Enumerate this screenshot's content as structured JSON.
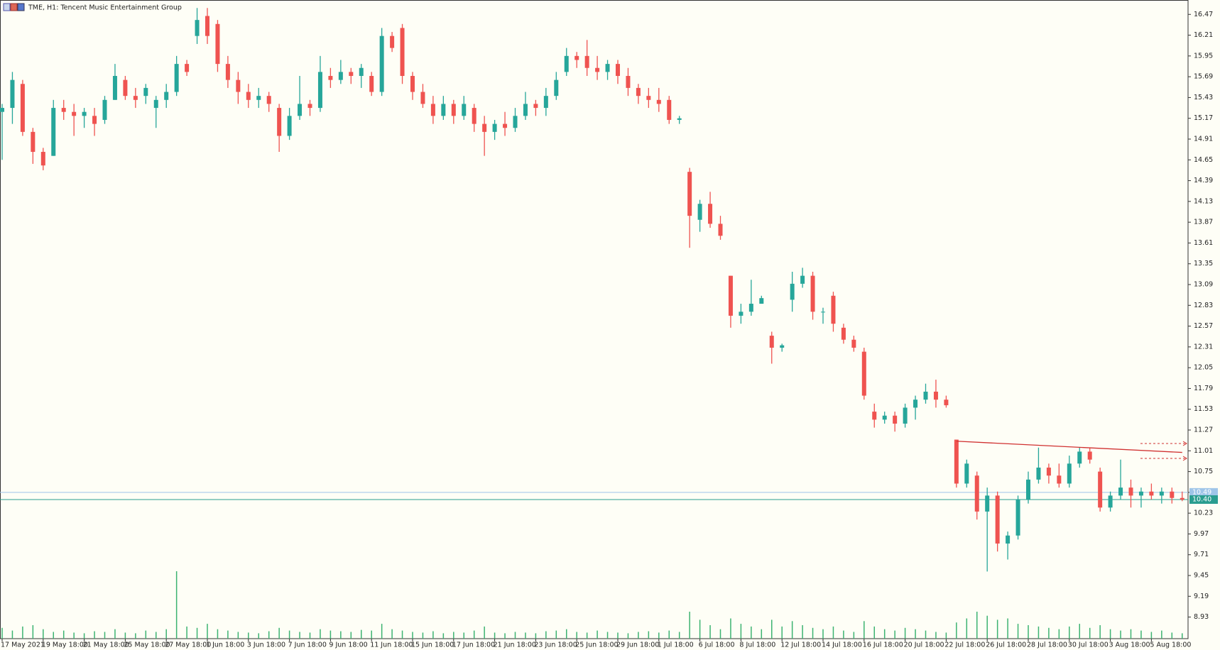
{
  "chart_data": {
    "type": "candlestick",
    "title": "TME, H1:  Tencent Music Entertainment Group",
    "categories": [
      "17 May 2021",
      null,
      null,
      null,
      "19 May 18:00",
      null,
      null,
      null,
      "21 May 18:00",
      null,
      null,
      null,
      "25 May 18:00",
      null,
      null,
      null,
      "27 May 18:00",
      null,
      null,
      null,
      "1 Jun 18:00",
      null,
      null,
      null,
      "3 Jun 18:00",
      null,
      null,
      null,
      "7 Jun 18:00",
      null,
      null,
      null,
      "9 Jun 18:00",
      null,
      null,
      null,
      "11 Jun 18:00",
      null,
      null,
      null,
      "15 Jun 18:00",
      null,
      null,
      null,
      "17 Jun 18:00",
      null,
      null,
      null,
      "21 Jun 18:00",
      null,
      null,
      null,
      "23 Jun 18:00",
      null,
      null,
      null,
      "25 Jun 18:00",
      null,
      null,
      null,
      "29 Jun 18:00",
      null,
      null,
      null,
      "1 Jul 18:00",
      null,
      null,
      null,
      "6 Jul 18:00",
      null,
      null,
      null,
      "8 Jul 18:00",
      null,
      null,
      null,
      "12 Jul 18:00",
      null,
      null,
      null,
      "14 Jul 18:00",
      null,
      null,
      null,
      "16 Jul 18:00",
      null,
      null,
      null,
      "20 Jul 18:00",
      null,
      null,
      null,
      "22 Jul 18:00",
      null,
      null,
      null,
      "26 Jul 18:00",
      null,
      null,
      null,
      "28 Jul 18:00",
      null,
      null,
      null,
      "30 Jul 18:00",
      null,
      null,
      null,
      "3 Aug 18:00",
      null,
      null,
      null,
      "5 Aug 18:00",
      null,
      null,
      null
    ],
    "open": [
      15.25,
      15.3,
      15.6,
      15.0,
      14.75,
      14.7,
      15.3,
      15.25,
      15.2,
      15.2,
      15.15,
      15.4,
      15.65,
      15.45,
      15.45,
      15.3,
      15.4,
      15.5,
      15.85,
      16.2,
      16.45,
      16.35,
      15.85,
      15.65,
      15.5,
      15.4,
      15.45,
      15.3,
      14.95,
      15.2,
      15.35,
      15.3,
      15.7,
      15.65,
      15.75,
      15.7,
      15.7,
      15.5,
      16.2,
      16.3,
      15.7,
      15.5,
      15.35,
      15.2,
      15.35,
      15.2,
      15.3,
      15.1,
      15.0,
      15.1,
      15.05,
      15.2,
      15.35,
      15.3,
      15.45,
      15.75,
      15.95,
      15.95,
      15.8,
      15.75,
      15.85,
      15.7,
      15.55,
      15.45,
      15.4,
      15.4,
      15.15,
      14.5,
      13.9,
      14.1,
      13.85,
      13.2,
      12.7,
      12.75,
      12.85,
      12.45,
      12.3,
      12.9,
      13.1,
      13.2,
      12.75,
      12.95,
      12.55,
      12.4,
      12.25,
      11.5,
      11.4,
      11.45,
      11.35,
      11.55,
      11.65,
      11.75,
      11.65,
      11.15,
      10.6,
      10.7,
      10.25,
      10.45,
      9.85,
      9.95,
      10.4,
      10.65,
      10.8,
      10.7,
      10.6,
      10.85,
      11.0,
      10.75,
      10.3,
      10.45,
      10.55,
      10.45,
      10.5,
      10.45,
      10.5,
      10.42
    ],
    "high": [
      15.35,
      15.75,
      15.65,
      15.05,
      14.8,
      15.4,
      15.4,
      15.35,
      15.3,
      15.3,
      15.45,
      15.85,
      15.7,
      15.55,
      15.6,
      15.45,
      15.6,
      15.95,
      15.9,
      16.55,
      16.55,
      16.4,
      15.95,
      15.75,
      15.6,
      15.55,
      15.5,
      15.35,
      15.3,
      15.7,
      15.4,
      15.95,
      15.8,
      15.9,
      15.8,
      15.85,
      15.75,
      16.3,
      16.25,
      16.35,
      15.75,
      15.6,
      15.45,
      15.45,
      15.4,
      15.45,
      15.35,
      15.2,
      15.15,
      15.25,
      15.3,
      15.5,
      15.4,
      15.55,
      15.75,
      16.05,
      16.0,
      16.15,
      15.95,
      15.9,
      15.9,
      15.8,
      15.6,
      15.55,
      15.55,
      15.45,
      15.2,
      14.55,
      14.15,
      14.25,
      13.95,
      13.2,
      12.85,
      13.15,
      12.95,
      12.5,
      12.35,
      13.25,
      13.3,
      13.25,
      12.8,
      13.0,
      12.6,
      12.45,
      12.3,
      11.6,
      11.5,
      11.5,
      11.6,
      11.7,
      11.85,
      11.9,
      11.7,
      11.15,
      10.9,
      10.75,
      10.55,
      10.5,
      10.0,
      10.45,
      10.75,
      11.05,
      10.85,
      10.85,
      10.95,
      11.05,
      11.05,
      10.8,
      10.5,
      10.9,
      10.65,
      10.55,
      10.6,
      10.55,
      10.55,
      10.5
    ],
    "low": [
      14.65,
      15.1,
      14.95,
      14.6,
      14.52,
      14.7,
      15.15,
      14.95,
      15.05,
      14.95,
      15.1,
      15.4,
      15.4,
      15.3,
      15.35,
      15.05,
      15.3,
      15.45,
      15.7,
      16.1,
      16.1,
      15.75,
      15.55,
      15.35,
      15.3,
      15.3,
      15.25,
      14.75,
      14.9,
      15.15,
      15.2,
      15.25,
      15.55,
      15.6,
      15.6,
      15.55,
      15.45,
      15.45,
      16.0,
      15.6,
      15.4,
      15.3,
      15.1,
      15.15,
      15.1,
      15.15,
      15.0,
      14.7,
      14.9,
      14.95,
      15.0,
      15.15,
      15.2,
      15.2,
      15.4,
      15.7,
      15.8,
      15.7,
      15.65,
      15.65,
      15.6,
      15.45,
      15.35,
      15.3,
      15.25,
      15.1,
      15.1,
      13.55,
      13.75,
      13.8,
      13.65,
      12.55,
      12.6,
      12.7,
      12.85,
      12.1,
      12.25,
      12.75,
      13.05,
      12.65,
      12.6,
      12.5,
      12.35,
      12.25,
      11.65,
      11.3,
      11.35,
      11.25,
      11.3,
      11.4,
      11.6,
      11.55,
      11.55,
      10.55,
      10.55,
      10.15,
      9.5,
      9.75,
      9.65,
      9.9,
      10.35,
      10.6,
      10.6,
      10.55,
      10.55,
      10.8,
      10.85,
      10.25,
      10.25,
      10.4,
      10.3,
      10.3,
      10.4,
      10.35,
      10.35,
      10.38
    ],
    "close": [
      15.3,
      15.65,
      15.0,
      14.75,
      14.58,
      15.3,
      15.25,
      15.2,
      15.25,
      15.1,
      15.4,
      15.7,
      15.45,
      15.4,
      15.55,
      15.4,
      15.5,
      15.85,
      15.75,
      16.4,
      16.2,
      15.85,
      15.65,
      15.5,
      15.4,
      15.45,
      15.35,
      14.95,
      15.2,
      15.35,
      15.3,
      15.75,
      15.65,
      15.75,
      15.7,
      15.8,
      15.5,
      16.2,
      16.05,
      15.7,
      15.5,
      15.35,
      15.2,
      15.35,
      15.2,
      15.35,
      15.1,
      15.0,
      15.1,
      15.05,
      15.2,
      15.35,
      15.3,
      15.45,
      15.65,
      15.95,
      15.9,
      15.8,
      15.75,
      15.85,
      15.7,
      15.55,
      15.45,
      15.4,
      15.35,
      15.15,
      15.17,
      13.95,
      14.1,
      13.85,
      13.7,
      12.7,
      12.75,
      12.85,
      12.92,
      12.3,
      12.33,
      13.1,
      13.2,
      12.75,
      12.75,
      12.6,
      12.4,
      12.3,
      11.7,
      11.4,
      11.45,
      11.35,
      11.55,
      11.65,
      11.75,
      11.65,
      11.58,
      10.6,
      10.85,
      10.25,
      10.45,
      9.85,
      9.95,
      10.4,
      10.65,
      10.8,
      10.7,
      10.6,
      10.85,
      11.0,
      10.9,
      10.3,
      10.45,
      10.55,
      10.45,
      10.5,
      10.45,
      10.5,
      10.42,
      10.4
    ],
    "volume": [
      16,
      12,
      18,
      20,
      14,
      10,
      12,
      9,
      8,
      11,
      10,
      14,
      9,
      8,
      12,
      10,
      14,
      100,
      18,
      16,
      22,
      14,
      12,
      10,
      9,
      8,
      11,
      16,
      12,
      10,
      9,
      14,
      12,
      11,
      10,
      13,
      12,
      22,
      14,
      12,
      10,
      9,
      11,
      8,
      10,
      9,
      12,
      18,
      9,
      8,
      10,
      9,
      8,
      11,
      12,
      14,
      10,
      9,
      12,
      10,
      9,
      8,
      10,
      11,
      9,
      12,
      10,
      40,
      28,
      20,
      14,
      30,
      22,
      18,
      14,
      28,
      18,
      26,
      20,
      16,
      14,
      18,
      12,
      10,
      26,
      18,
      14,
      12,
      16,
      14,
      12,
      10,
      9,
      24,
      30,
      40,
      34,
      28,
      30,
      22,
      20,
      18,
      16,
      14,
      18,
      22,
      16,
      20,
      14,
      12,
      14,
      12,
      10,
      12,
      9,
      8
    ],
    "volume_lim": [
      0,
      100
    ],
    "up_color": "#26a69a",
    "down_color": "#ef5350",
    "volume_color": "#3cb371",
    "ylim": [
      8.66,
      16.65
    ],
    "yticks": [
      8.93,
      9.19,
      9.45,
      9.71,
      9.97,
      10.23,
      10.49,
      10.75,
      11.01,
      11.27,
      11.53,
      11.79,
      12.05,
      12.31,
      12.57,
      12.83,
      13.09,
      13.35,
      13.61,
      13.87,
      14.13,
      14.39,
      14.65,
      14.91,
      15.17,
      15.43,
      15.69,
      15.95,
      16.21,
      16.47
    ],
    "ask": {
      "value": 10.49,
      "label": "10.49"
    },
    "bid": {
      "value": 10.4,
      "label": "10.40"
    },
    "trendline": {
      "x": [
        93,
        115
      ],
      "y": [
        11.13,
        10.99
      ],
      "color": "#d03030"
    }
  }
}
